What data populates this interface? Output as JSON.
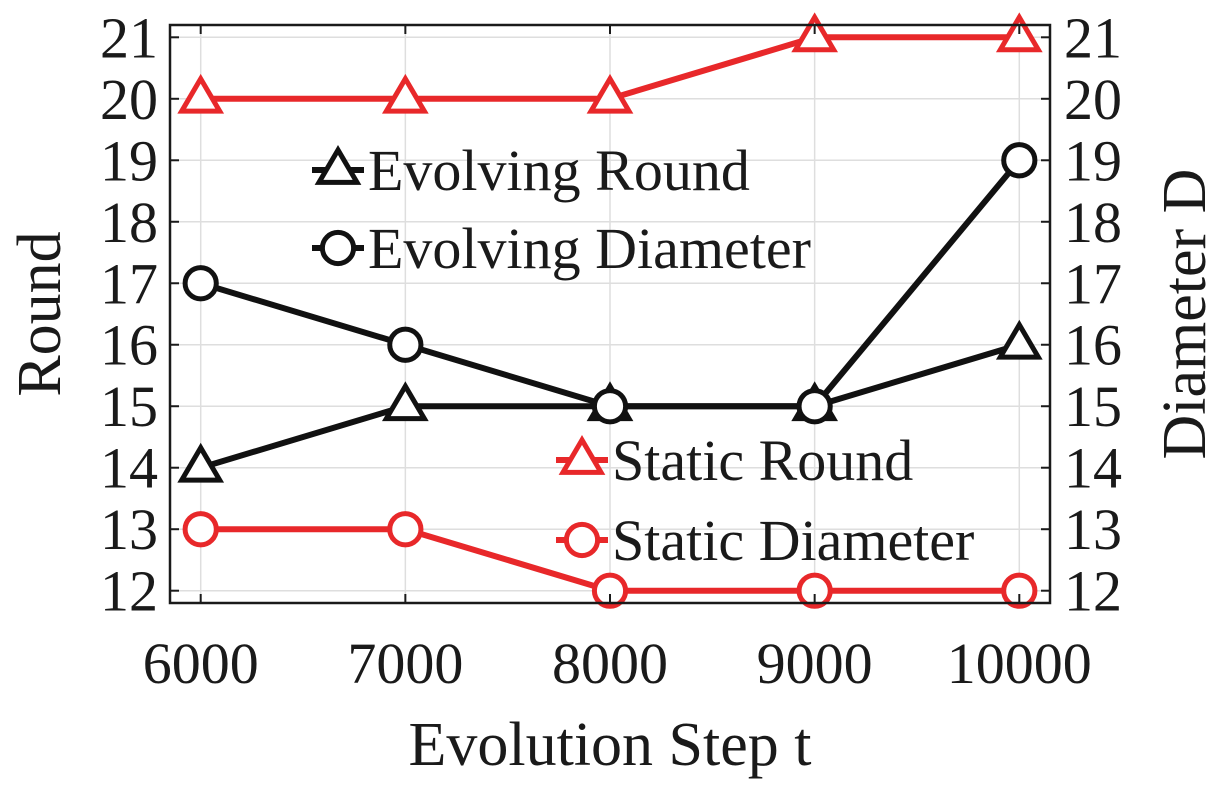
{
  "chart_data": {
    "type": "line",
    "x": [
      6000,
      7000,
      8000,
      9000,
      10000
    ],
    "xlabel": "Evolution Step t",
    "ylabel": "Round",
    "y2label": "Diameter D",
    "xlim": [
      5850,
      10150
    ],
    "ylim": [
      11.8,
      21.2
    ],
    "xticks": [
      "6000",
      "7000",
      "8000",
      "9000",
      "10000"
    ],
    "yticks": [
      "12",
      "13",
      "14",
      "15",
      "16",
      "17",
      "18",
      "19",
      "20",
      "21"
    ],
    "grid": true,
    "series": [
      {
        "name": "Evolving Round",
        "values": [
          14,
          15,
          15,
          15,
          16
        ],
        "color": "#111111",
        "marker": "triangle",
        "axis": "left"
      },
      {
        "name": "Evolving Diameter",
        "values": [
          17,
          16,
          15,
          15,
          19
        ],
        "color": "#111111",
        "marker": "circle",
        "axis": "right"
      },
      {
        "name": "Static Round",
        "values": [
          20,
          20,
          20,
          21,
          21
        ],
        "color": "#e8282a",
        "marker": "triangle",
        "axis": "left"
      },
      {
        "name": "Static Diameter",
        "values": [
          13,
          13,
          12,
          12,
          12
        ],
        "color": "#e8282a",
        "marker": "circle",
        "axis": "right"
      }
    ],
    "legend": [
      {
        "series": 0,
        "placement": "upper-center"
      },
      {
        "series": 1,
        "placement": "upper-center"
      },
      {
        "series": 2,
        "placement": "lower-right"
      },
      {
        "series": 3,
        "placement": "lower-right"
      }
    ]
  }
}
